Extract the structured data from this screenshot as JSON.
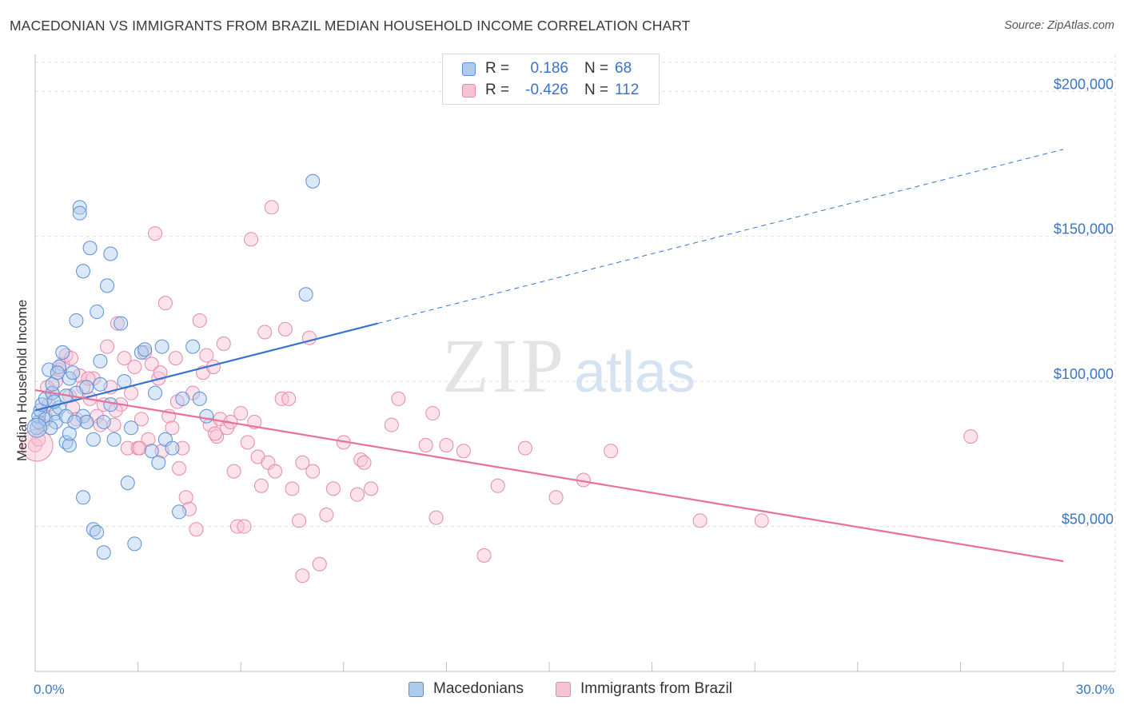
{
  "header": {
    "title": "MACEDONIAN VS IMMIGRANTS FROM BRAZIL MEDIAN HOUSEHOLD INCOME CORRELATION CHART",
    "source": "Source: ZipAtlas.com"
  },
  "watermark": {
    "zip": "ZIP",
    "atlas": "atlas"
  },
  "colors": {
    "blue_fill": "#aecbee",
    "blue_stroke": "#5b8fd6",
    "blue_line": "#3374d0",
    "pink_fill": "#f8c2d3",
    "pink_stroke": "#e48aa8",
    "pink_line": "#e8709a",
    "tick_text": "#3a74c4",
    "grid": "#dcdcdc"
  },
  "legend_top": {
    "rows": [
      {
        "key": "R =",
        "r_value": "0.186",
        "n_key": "N =",
        "n_value": "68",
        "color": "blue"
      },
      {
        "key": "R =",
        "r_value": "-0.426",
        "n_key": "N =",
        "n_value": "112",
        "color": "pink"
      }
    ]
  },
  "chart_data": {
    "type": "scatter",
    "title": "MACEDONIAN VS IMMIGRANTS FROM BRAZIL MEDIAN HOUSEHOLD INCOME CORRELATION CHART",
    "xlabel": "",
    "ylabel": "Median Household Income",
    "xlim": [
      0,
      30
    ],
    "ylim": [
      0,
      210000
    ],
    "x_tick_labels": [
      "0.0%",
      "30.0%"
    ],
    "y_ticks": [
      50000,
      100000,
      150000,
      200000
    ],
    "y_tick_labels": [
      "$50,000",
      "$100,000",
      "$150,000",
      "$200,000"
    ],
    "grid": true,
    "legend": "bottom",
    "series": [
      {
        "name": "Macedonians",
        "color": "blue",
        "r": 0.186,
        "n": 68,
        "trend": {
          "x": [
            0,
            10
          ],
          "y": [
            90000,
            120000
          ],
          "extended_to": [
            30,
            180000
          ]
        },
        "points": [
          [
            0.05,
            84000
          ],
          [
            0.1,
            86000
          ],
          [
            0.1,
            88000
          ],
          [
            0.15,
            90000
          ],
          [
            0.2,
            92000
          ],
          [
            0.3,
            94000
          ],
          [
            0.3,
            87000
          ],
          [
            0.4,
            104000
          ],
          [
            0.5,
            96000
          ],
          [
            0.5,
            99000
          ],
          [
            0.6,
            89000
          ],
          [
            0.6,
            86000
          ],
          [
            0.7,
            105000
          ],
          [
            0.7,
            91000
          ],
          [
            0.8,
            110000
          ],
          [
            0.9,
            88000
          ],
          [
            0.9,
            79000
          ],
          [
            1.0,
            78000
          ],
          [
            1.0,
            101000
          ],
          [
            1.0,
            82000
          ],
          [
            1.1,
            103000
          ],
          [
            1.2,
            121000
          ],
          [
            1.2,
            96000
          ],
          [
            1.3,
            160000
          ],
          [
            1.3,
            158000
          ],
          [
            1.4,
            138000
          ],
          [
            1.4,
            60000
          ],
          [
            1.4,
            88000
          ],
          [
            1.5,
            86000
          ],
          [
            1.5,
            98000
          ],
          [
            1.6,
            146000
          ],
          [
            1.7,
            80000
          ],
          [
            1.7,
            49000
          ],
          [
            1.8,
            48000
          ],
          [
            1.8,
            124000
          ],
          [
            1.9,
            99000
          ],
          [
            1.9,
            107000
          ],
          [
            2.0,
            86000
          ],
          [
            2.0,
            41000
          ],
          [
            2.1,
            133000
          ],
          [
            2.2,
            92000
          ],
          [
            2.2,
            144000
          ],
          [
            2.3,
            80000
          ],
          [
            2.5,
            120000
          ],
          [
            2.6,
            100000
          ],
          [
            2.7,
            65000
          ],
          [
            2.8,
            84000
          ],
          [
            2.9,
            44000
          ],
          [
            3.1,
            110000
          ],
          [
            3.2,
            111000
          ],
          [
            3.4,
            76000
          ],
          [
            3.5,
            96000
          ],
          [
            3.6,
            72000
          ],
          [
            3.7,
            112000
          ],
          [
            3.8,
            80000
          ],
          [
            4.0,
            77000
          ],
          [
            4.2,
            55000
          ],
          [
            4.3,
            94000
          ],
          [
            4.6,
            112000
          ],
          [
            4.8,
            94000
          ],
          [
            5.0,
            88000
          ],
          [
            7.9,
            130000
          ],
          [
            8.1,
            169000
          ],
          [
            0.9,
            95000
          ],
          [
            0.45,
            84000
          ],
          [
            0.55,
            93000
          ],
          [
            0.65,
            103000
          ],
          [
            1.15,
            86000
          ]
        ]
      },
      {
        "name": "Immigrants from Brazil",
        "color": "pink",
        "r": -0.426,
        "n": 112,
        "trend": {
          "x": [
            0,
            30
          ],
          "y": [
            97000,
            38000
          ]
        },
        "points": [
          [
            0.0,
            78000
          ],
          [
            0.1,
            80000
          ],
          [
            0.3,
            88000
          ],
          [
            0.4,
            92000
          ],
          [
            0.5,
            96000
          ],
          [
            0.6,
            100000
          ],
          [
            0.7,
            104000
          ],
          [
            0.8,
            106000
          ],
          [
            0.9,
            109000
          ],
          [
            1.0,
            95000
          ],
          [
            1.1,
            91000
          ],
          [
            1.2,
            87000
          ],
          [
            1.3,
            102000
          ],
          [
            1.4,
            98000
          ],
          [
            1.5,
            86000
          ],
          [
            1.6,
            94000
          ],
          [
            1.7,
            101000
          ],
          [
            1.8,
            88000
          ],
          [
            1.9,
            85000
          ],
          [
            2.0,
            92000
          ],
          [
            2.1,
            112000
          ],
          [
            2.2,
            98000
          ],
          [
            2.3,
            85000
          ],
          [
            2.4,
            120000
          ],
          [
            2.5,
            92000
          ],
          [
            2.6,
            108000
          ],
          [
            2.7,
            77000
          ],
          [
            2.8,
            96000
          ],
          [
            2.9,
            105000
          ],
          [
            3.0,
            77000
          ],
          [
            3.1,
            87000
          ],
          [
            3.2,
            110000
          ],
          [
            3.3,
            80000
          ],
          [
            3.4,
            106000
          ],
          [
            3.5,
            151000
          ],
          [
            3.6,
            101000
          ],
          [
            3.7,
            76000
          ],
          [
            3.8,
            127000
          ],
          [
            3.9,
            88000
          ],
          [
            4.0,
            84000
          ],
          [
            4.1,
            108000
          ],
          [
            4.2,
            70000
          ],
          [
            4.3,
            77000
          ],
          [
            4.4,
            60000
          ],
          [
            4.5,
            56000
          ],
          [
            4.6,
            96000
          ],
          [
            4.7,
            49000
          ],
          [
            4.8,
            121000
          ],
          [
            4.9,
            103000
          ],
          [
            5.0,
            109000
          ],
          [
            5.1,
            85000
          ],
          [
            5.2,
            105000
          ],
          [
            5.3,
            81000
          ],
          [
            5.4,
            87000
          ],
          [
            5.5,
            113000
          ],
          [
            5.6,
            84000
          ],
          [
            5.7,
            86000
          ],
          [
            5.8,
            69000
          ],
          [
            5.9,
            50000
          ],
          [
            6.0,
            89000
          ],
          [
            6.1,
            50000
          ],
          [
            6.2,
            79000
          ],
          [
            6.3,
            149000
          ],
          [
            6.4,
            86000
          ],
          [
            6.5,
            74000
          ],
          [
            6.6,
            64000
          ],
          [
            6.7,
            117000
          ],
          [
            6.8,
            72000
          ],
          [
            6.9,
            160000
          ],
          [
            7.0,
            69000
          ],
          [
            7.2,
            94000
          ],
          [
            7.3,
            118000
          ],
          [
            7.4,
            94000
          ],
          [
            7.5,
            63000
          ],
          [
            7.7,
            52000
          ],
          [
            7.8,
            72000
          ],
          [
            7.8,
            33000
          ],
          [
            8.0,
            115000
          ],
          [
            8.1,
            69000
          ],
          [
            8.3,
            37000
          ],
          [
            8.5,
            54000
          ],
          [
            8.7,
            63000
          ],
          [
            9.0,
            79000
          ],
          [
            9.4,
            61000
          ],
          [
            9.5,
            73000
          ],
          [
            9.6,
            72000
          ],
          [
            9.8,
            63000
          ],
          [
            10.4,
            85000
          ],
          [
            10.6,
            94000
          ],
          [
            11.4,
            78000
          ],
          [
            11.6,
            89000
          ],
          [
            11.7,
            53000
          ],
          [
            12.0,
            78000
          ],
          [
            12.5,
            76000
          ],
          [
            13.1,
            40000
          ],
          [
            13.5,
            64000
          ],
          [
            14.3,
            77000
          ],
          [
            15.2,
            60000
          ],
          [
            16.0,
            66000
          ],
          [
            16.8,
            76000
          ],
          [
            19.4,
            52000
          ],
          [
            21.2,
            52000
          ],
          [
            27.3,
            81000
          ],
          [
            0.2,
            85000
          ],
          [
            0.35,
            98000
          ],
          [
            1.05,
            108000
          ],
          [
            1.55,
            101000
          ],
          [
            2.35,
            90000
          ],
          [
            3.05,
            77000
          ],
          [
            3.65,
            103000
          ],
          [
            4.15,
            93000
          ],
          [
            5.25,
            82000
          ]
        ]
      }
    ]
  }
}
